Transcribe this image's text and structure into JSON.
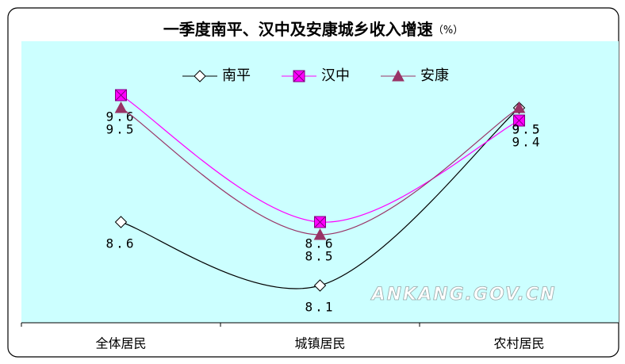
{
  "chart_data": {
    "type": "line",
    "title": "一季度南平、汉中及安康城乡收入增速",
    "title_unit": "（%）",
    "watermark": "ANKANG.GOV.CN",
    "categories": [
      "全体居民",
      "城镇居民",
      "农村居民"
    ],
    "series": [
      {
        "name": "南平",
        "color": "#000000",
        "marker": "diamond",
        "values": [
          8.6,
          8.1,
          9.5
        ]
      },
      {
        "name": "汉中",
        "color": "#ff00ff",
        "marker": "square",
        "values": [
          9.6,
          8.6,
          9.4
        ]
      },
      {
        "name": "安康",
        "color": "#993366",
        "marker": "triangle",
        "values": [
          9.5,
          8.5,
          9.5
        ]
      }
    ],
    "grid": false,
    "legend": "top"
  }
}
